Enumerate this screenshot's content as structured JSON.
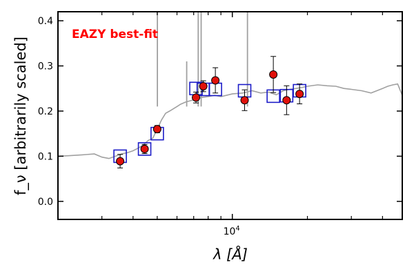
{
  "chart_data": {
    "type": "scatter",
    "title": "",
    "xlabel": "λ [Å]",
    "ylabel": "f_ν [arbitrarily scaled]",
    "xscale": "log",
    "xlim": [
      2000,
      48000
    ],
    "ylim": [
      -0.04,
      0.42
    ],
    "yticks": [
      0.0,
      0.1,
      0.2,
      0.3,
      0.4
    ],
    "ytick_labels": [
      "0.0",
      "0.1",
      "0.2",
      "0.3",
      "0.4"
    ],
    "xtick_labels": [
      {
        "value": 10000,
        "base": "10",
        "exp": "4"
      }
    ],
    "annotation": {
      "text": "EAZY best-fit",
      "color": "#ff0000",
      "position": "top-left"
    },
    "grid": false,
    "series": [
      {
        "style": "template-spectrum",
        "color": "#a0a0a0",
        "x": [
          2000,
          2200,
          2500,
          2800,
          3000,
          3200,
          3400,
          3600,
          3800,
          4000,
          4200,
          4400,
          4600,
          4800,
          5000,
          5200,
          5400,
          5600,
          5800,
          6000,
          6200,
          6500,
          7000,
          7500,
          8000,
          8500,
          9000,
          10000,
          11000,
          12000,
          13000,
          14000,
          15000,
          16000,
          17000,
          18000,
          19000,
          20000,
          22000,
          24000,
          26000,
          28000,
          30000,
          33000,
          36000,
          40000,
          42000,
          44000,
          46000,
          48000
        ],
        "y": [
          0.1,
          0.101,
          0.103,
          0.105,
          0.098,
          0.095,
          0.1,
          0.105,
          0.108,
          0.112,
          0.118,
          0.125,
          0.135,
          0.14,
          0.16,
          0.18,
          0.195,
          0.2,
          0.205,
          0.21,
          0.215,
          0.22,
          0.225,
          0.23,
          0.232,
          0.235,
          0.232,
          0.238,
          0.24,
          0.245,
          0.24,
          0.242,
          0.236,
          0.245,
          0.248,
          0.25,
          0.252,
          0.255,
          0.258,
          0.256,
          0.255,
          0.25,
          0.248,
          0.245,
          0.24,
          0.25,
          0.255,
          0.258,
          0.26,
          0.235
        ]
      },
      {
        "style": "open-square",
        "color": "#1c1cc8",
        "x": [
          3550,
          4450,
          5000,
          7150,
          7650,
          8550,
          11200,
          14600,
          16500,
          18600
        ],
        "y": [
          0.1,
          0.116,
          0.15,
          0.25,
          0.248,
          0.248,
          0.245,
          0.233,
          0.234,
          0.245
        ]
      },
      {
        "style": "filled-circle-errorbar",
        "color": "#e0110b",
        "x": [
          3550,
          4450,
          5000,
          7150,
          7650,
          8550,
          11200,
          14600,
          16500,
          18600
        ],
        "y": [
          0.089,
          0.116,
          0.16,
          0.23,
          0.255,
          0.268,
          0.224,
          0.281,
          0.224,
          0.238
        ],
        "yerr": [
          0.015,
          0.01,
          0.008,
          0.012,
          0.012,
          0.028,
          0.023,
          0.04,
          0.032,
          0.022
        ]
      }
    ],
    "emission_lines": [
      {
        "x": 5007,
        "ymax": 0.42
      },
      {
        "x": 6563,
        "ymax": 0.31
      },
      {
        "x": 7300,
        "ymax": 0.42
      },
      {
        "x": 7500,
        "ymax": 0.42
      },
      {
        "x": 11500,
        "ymax": 0.42
      }
    ]
  }
}
